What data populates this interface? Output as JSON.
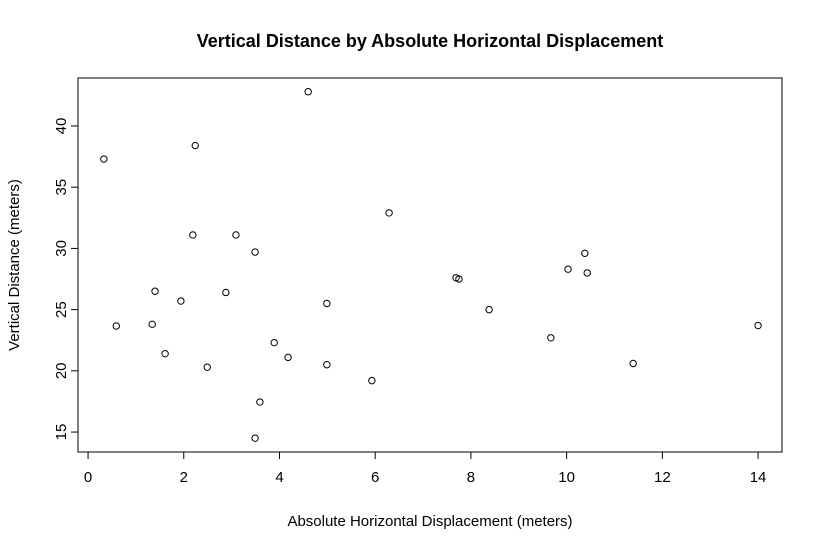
{
  "chart_data": {
    "type": "scatter",
    "title": "Vertical Distance by Absolute Horizontal Displacement",
    "x_label": "Absolute Horizontal Displacement (meters)",
    "y_label": "Vertical Distance (meters)",
    "x": [
      0.33,
      0.59,
      1.34,
      1.4,
      1.61,
      1.94,
      2.19,
      2.24,
      2.49,
      2.88,
      3.09,
      3.49,
      3.49,
      3.59,
      3.89,
      4.18,
      4.6,
      4.99,
      4.99,
      5.93,
      6.29,
      7.69,
      7.75,
      8.38,
      9.67,
      10.03,
      10.38,
      10.43,
      11.39,
      14.0
    ],
    "y": [
      37.3,
      23.66,
      23.8,
      26.5,
      21.4,
      25.7,
      31.1,
      38.4,
      20.3,
      26.4,
      31.1,
      29.7,
      14.5,
      17.45,
      22.3,
      21.1,
      42.8,
      25.5,
      20.5,
      19.2,
      32.9,
      27.6,
      27.5,
      25.0,
      22.7,
      28.3,
      29.6,
      28.0,
      20.6,
      23.7
    ],
    "color": "#000000",
    "xlim": [
      -0.21,
      14.5
    ],
    "ylim": [
      13.37,
      43.92
    ],
    "xticks": [
      0,
      2,
      4,
      6,
      8,
      10,
      12,
      14
    ],
    "yticks": [
      15,
      20,
      25,
      30,
      35,
      40
    ],
    "grid": false
  }
}
